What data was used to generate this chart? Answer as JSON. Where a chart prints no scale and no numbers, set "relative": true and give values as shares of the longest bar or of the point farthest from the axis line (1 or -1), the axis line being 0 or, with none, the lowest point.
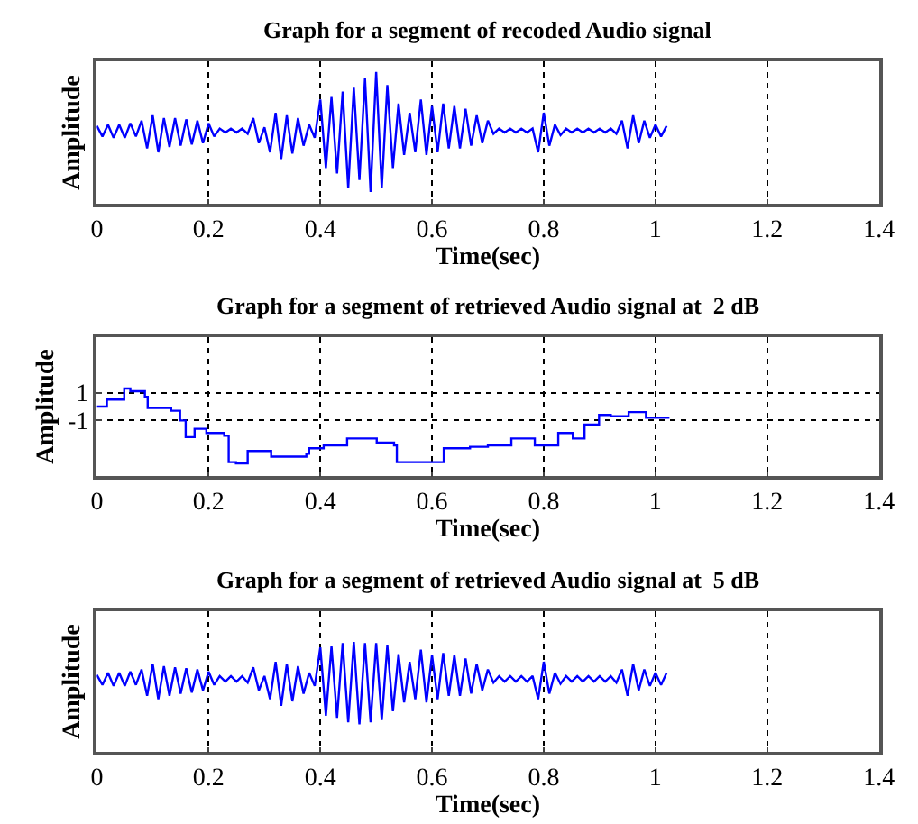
{
  "chart_data": [
    {
      "type": "line",
      "title": "Graph for a segment of recoded Audio signal",
      "xlabel": "Time(sec)",
      "ylabel": "Amplitude",
      "relative": true,
      "xlim": [
        0,
        1.4
      ],
      "xticks": [
        0,
        0.2,
        0.4,
        0.6,
        0.8,
        1,
        1.2,
        1.4
      ],
      "grid": "x",
      "tick_labels": "x",
      "x": [
        0,
        0.01,
        0.02,
        0.03,
        0.04,
        0.05,
        0.06,
        0.07,
        0.08,
        0.09,
        0.1,
        0.11,
        0.12,
        0.13,
        0.14,
        0.15,
        0.16,
        0.17,
        0.18,
        0.19,
        0.2,
        0.21,
        0.22,
        0.23,
        0.24,
        0.25,
        0.26,
        0.27,
        0.28,
        0.29,
        0.3,
        0.31,
        0.32,
        0.33,
        0.34,
        0.35,
        0.36,
        0.37,
        0.38,
        0.39,
        0.4,
        0.41,
        0.42,
        0.43,
        0.44,
        0.45,
        0.46,
        0.47,
        0.48,
        0.49,
        0.5,
        0.51,
        0.52,
        0.53,
        0.54,
        0.55,
        0.56,
        0.57,
        0.58,
        0.59,
        0.6,
        0.61,
        0.62,
        0.63,
        0.64,
        0.65,
        0.66,
        0.67,
        0.68,
        0.69,
        0.7,
        0.71,
        0.72,
        0.73,
        0.74,
        0.75,
        0.76,
        0.77,
        0.78,
        0.79,
        0.8,
        0.81,
        0.82,
        0.83,
        0.84,
        0.85,
        0.86,
        0.87,
        0.88,
        0.89,
        0.9,
        0.91,
        0.92,
        0.93,
        0.94,
        0.95,
        0.96,
        0.97,
        0.98,
        0.99,
        1,
        1.01,
        1.02
      ],
      "series": [
        {
          "color": "#0000ff",
          "values": [
            0.59,
            0.51,
            0.6,
            0.5,
            0.6,
            0.5,
            0.61,
            0.51,
            0.63,
            0.42,
            0.67,
            0.39,
            0.65,
            0.43,
            0.65,
            0.44,
            0.64,
            0.45,
            0.63,
            0.46,
            0.61,
            0.51,
            0.57,
            0.54,
            0.57,
            0.54,
            0.57,
            0.53,
            0.65,
            0.46,
            0.58,
            0.39,
            0.69,
            0.34,
            0.67,
            0.38,
            0.65,
            0.44,
            0.6,
            0.5,
            0.79,
            0.27,
            0.81,
            0.23,
            0.85,
            0.12,
            0.88,
            0.18,
            0.95,
            0.09,
            1,
            0.12,
            0.9,
            0.27,
            0.76,
            0.37,
            0.69,
            0.39,
            0.79,
            0.37,
            0.74,
            0.39,
            0.76,
            0.42,
            0.74,
            0.42,
            0.72,
            0.44,
            0.67,
            0.46,
            0.63,
            0.53,
            0.57,
            0.54,
            0.57,
            0.54,
            0.57,
            0.54,
            0.57,
            0.39,
            0.69,
            0.44,
            0.6,
            0.52,
            0.57,
            0.54,
            0.57,
            0.54,
            0.57,
            0.54,
            0.57,
            0.54,
            0.57,
            0.53,
            0.63,
            0.42,
            0.67,
            0.46,
            0.63,
            0.5,
            0.6,
            0.51,
            0.59
          ]
        }
      ]
    },
    {
      "type": "step",
      "title": "Graph for a segment of retrieved Audio signal at  2 dB",
      "xlabel": "Time(sec)",
      "ylabel": "Amplitude",
      "xlim": [
        0,
        1.4
      ],
      "xticks": [
        0,
        0.2,
        0.4,
        0.6,
        0.8,
        1,
        1.2,
        1.4
      ],
      "ylim": [
        -5,
        5
      ],
      "yticks": [
        -1,
        1
      ],
      "grid": true,
      "x": [
        0,
        0.018,
        0.049,
        0.06,
        0.086,
        0.091,
        0.133,
        0.149,
        0.159,
        0.175,
        0.196,
        0.228,
        0.236,
        0.249,
        0.27,
        0.312,
        0.375,
        0.38,
        0.406,
        0.448,
        0.501,
        0.532,
        0.537,
        0.616,
        0.621,
        0.668,
        0.7,
        0.742,
        0.784,
        0.826,
        0.852,
        0.873,
        0.899,
        0.92,
        0.952,
        0.983,
        1.025
      ],
      "series": [
        {
          "color": "#0000ff",
          "values": [
            0,
            0.5,
            1.3,
            1.1,
            0.7,
            -0.1,
            -0.3,
            -1.0,
            -2.2,
            -1.6,
            -1.9,
            -2.1,
            -4.0,
            -4.1,
            -3.2,
            -3.6,
            -3.4,
            -3.0,
            -2.8,
            -2.3,
            -2.6,
            -2.8,
            -4.0,
            -4.0,
            -3.0,
            -2.9,
            -2.8,
            -2.3,
            -2.8,
            -1.9,
            -2.3,
            -1.3,
            -0.6,
            -0.7,
            -0.4,
            -0.8,
            -0.8
          ]
        }
      ]
    },
    {
      "type": "line",
      "title": "Graph for a segment of retrieved Audio signal at  5 dB",
      "xlabel": "Time(sec)",
      "ylabel": "Amplitude",
      "relative": true,
      "xlim": [
        0,
        1.4
      ],
      "xticks": [
        0,
        0.2,
        0.4,
        0.6,
        0.8,
        1,
        1.2,
        1.4
      ],
      "grid": "x",
      "tick_labels": "x",
      "x": [
        0,
        0.01,
        0.02,
        0.03,
        0.04,
        0.05,
        0.06,
        0.07,
        0.08,
        0.09,
        0.1,
        0.11,
        0.12,
        0.13,
        0.14,
        0.15,
        0.16,
        0.17,
        0.18,
        0.19,
        0.2,
        0.21,
        0.22,
        0.23,
        0.24,
        0.25,
        0.26,
        0.27,
        0.28,
        0.29,
        0.3,
        0.31,
        0.32,
        0.33,
        0.34,
        0.35,
        0.36,
        0.37,
        0.38,
        0.39,
        0.4,
        0.41,
        0.42,
        0.43,
        0.44,
        0.45,
        0.46,
        0.47,
        0.48,
        0.49,
        0.5,
        0.51,
        0.52,
        0.53,
        0.54,
        0.55,
        0.56,
        0.57,
        0.58,
        0.59,
        0.6,
        0.61,
        0.62,
        0.63,
        0.64,
        0.65,
        0.66,
        0.67,
        0.68,
        0.69,
        0.7,
        0.71,
        0.72,
        0.73,
        0.74,
        0.75,
        0.76,
        0.77,
        0.78,
        0.79,
        0.8,
        0.81,
        0.82,
        0.83,
        0.84,
        0.85,
        0.86,
        0.87,
        0.88,
        0.89,
        0.9,
        0.91,
        0.92,
        0.93,
        0.94,
        0.95,
        0.96,
        0.97,
        0.98,
        0.99,
        1,
        1.01,
        1.02
      ],
      "series": [
        {
          "color": "#0000ff",
          "values": [
            0.7,
            0.61,
            0.72,
            0.6,
            0.72,
            0.6,
            0.73,
            0.61,
            0.75,
            0.51,
            0.8,
            0.48,
            0.78,
            0.51,
            0.77,
            0.53,
            0.76,
            0.54,
            0.75,
            0.56,
            0.73,
            0.61,
            0.69,
            0.64,
            0.69,
            0.64,
            0.69,
            0.63,
            0.77,
            0.56,
            0.69,
            0.48,
            0.82,
            0.42,
            0.8,
            0.46,
            0.78,
            0.53,
            0.72,
            0.6,
            0.95,
            0.33,
            0.96,
            0.31,
            0.99,
            0.27,
            1,
            0.25,
            0.99,
            0.27,
            0.99,
            0.29,
            0.97,
            0.37,
            0.89,
            0.45,
            0.82,
            0.48,
            0.93,
            0.45,
            0.88,
            0.48,
            0.9,
            0.51,
            0.88,
            0.51,
            0.85,
            0.53,
            0.8,
            0.56,
            0.75,
            0.63,
            0.69,
            0.64,
            0.69,
            0.64,
            0.69,
            0.64,
            0.69,
            0.48,
            0.82,
            0.53,
            0.72,
            0.62,
            0.69,
            0.64,
            0.69,
            0.64,
            0.69,
            0.64,
            0.69,
            0.64,
            0.69,
            0.63,
            0.75,
            0.51,
            0.8,
            0.56,
            0.75,
            0.6,
            0.72,
            0.61,
            0.72
          ]
        }
      ]
    }
  ]
}
